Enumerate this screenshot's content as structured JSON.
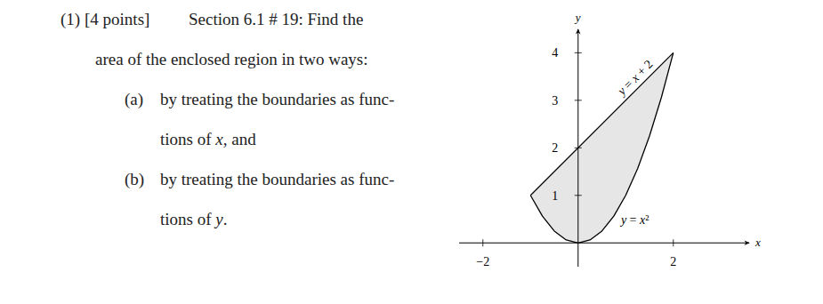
{
  "problem": {
    "number": "(1)",
    "points": "[4 points]",
    "heading": "Section 6.1 # 19: Find the",
    "continuation": "area of the enclosed region in two ways:",
    "parts": [
      {
        "label": "(a)",
        "lines": [
          "by treating the boundaries as func-",
          "tions of x, and"
        ]
      },
      {
        "label": "(b)",
        "lines": [
          "by treating the boundaries as func-",
          "tions of y."
        ]
      }
    ]
  },
  "chart_data": {
    "type": "line",
    "x_label": "x",
    "y_label": "y",
    "color": "#e6e6e6",
    "xlim": [
      -2.5,
      3.5
    ],
    "ylim": [
      -0.5,
      4.4
    ],
    "xticks": [
      {
        "value": -2,
        "label": "−2"
      },
      2
    ],
    "yticks": [
      1,
      2,
      3,
      4
    ],
    "grid": false,
    "series": [
      {
        "name": "y = x + 2",
        "color": "#000000",
        "x": [
          -1,
          2
        ],
        "values": [
          1,
          4
        ]
      },
      {
        "name": "y = x²",
        "color": "#000000",
        "x": [
          -1,
          -0.75,
          -0.5,
          -0.25,
          0,
          0.25,
          0.5,
          0.75,
          1,
          1.25,
          1.5,
          1.75,
          2
        ],
        "values": [
          1,
          0.5625,
          0.25,
          0.0625,
          0,
          0.0625,
          0.25,
          0.5625,
          1,
          1.5625,
          2.25,
          3.0625,
          4
        ]
      }
    ]
  }
}
